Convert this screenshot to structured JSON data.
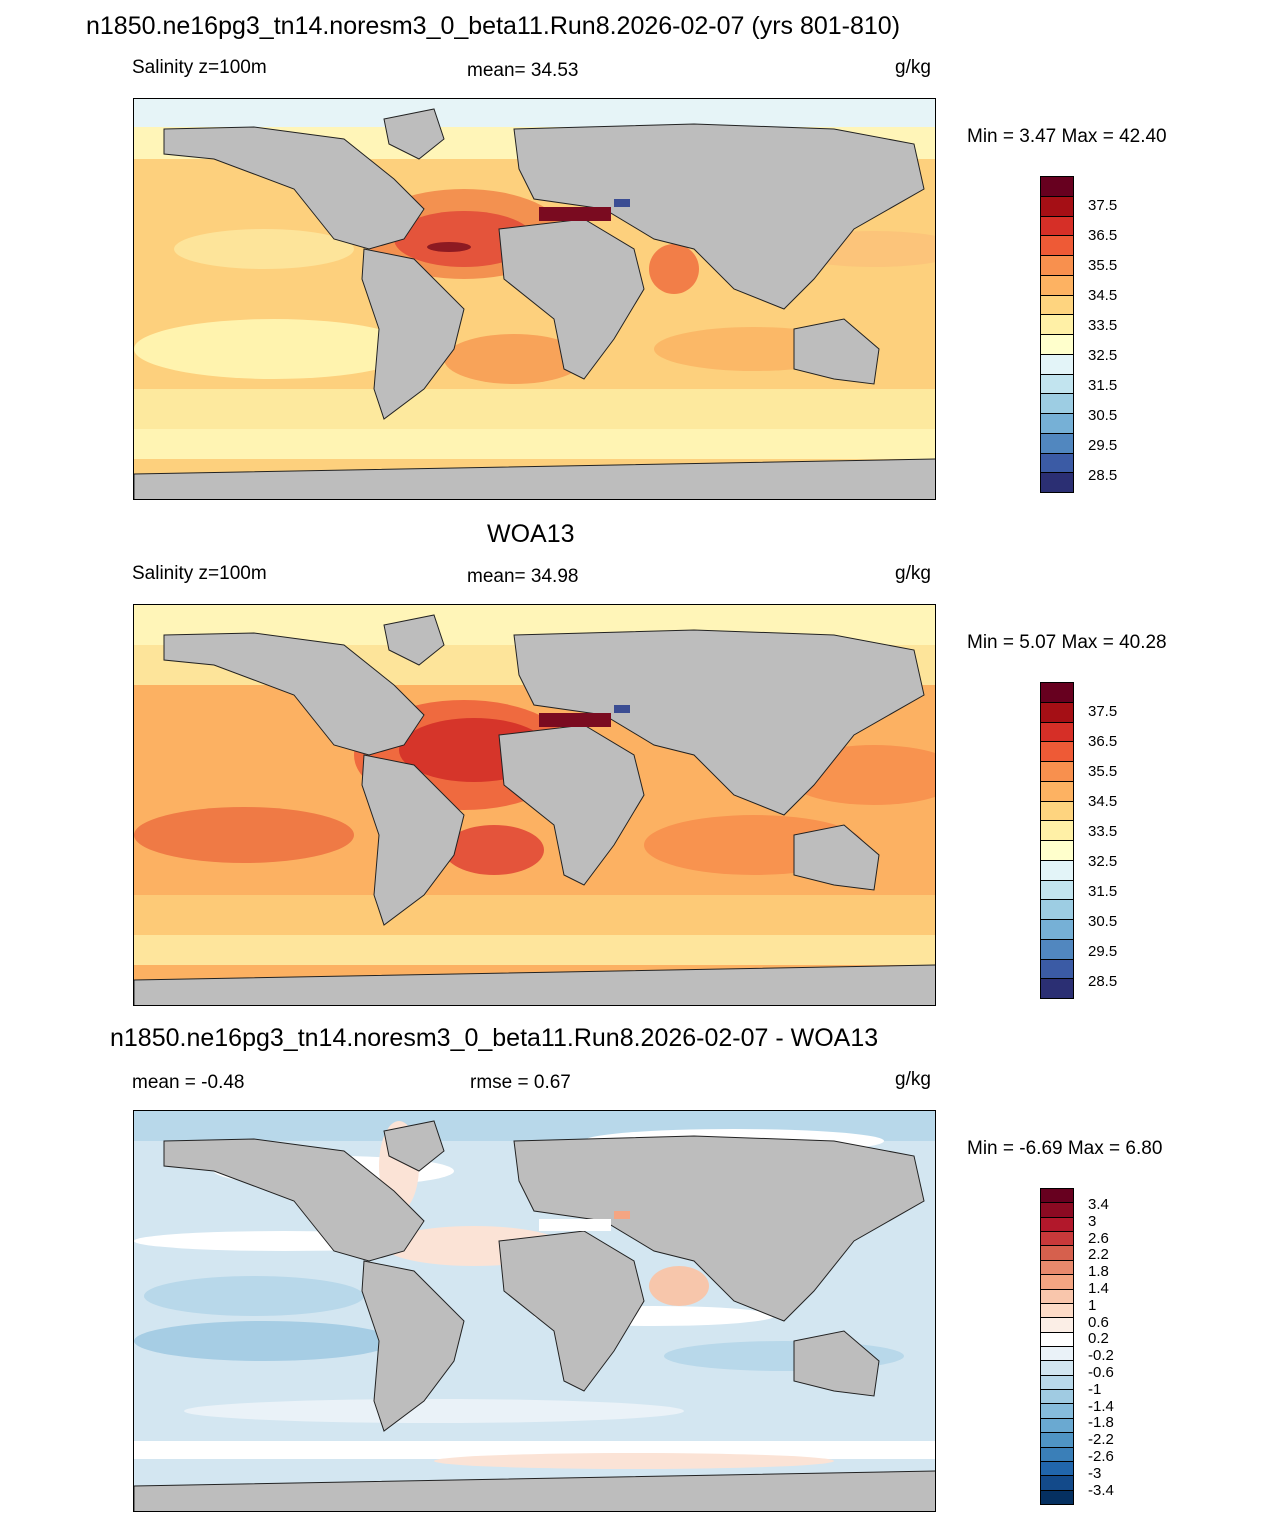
{
  "main_title": "n1850.ne16pg3_tn14.noresm3_0_beta11.Run8.2026-02-07 (yrs 801-810)",
  "panels": [
    {
      "id": "model",
      "title": "",
      "left_label": "Salinity z=100m",
      "center_label": "mean=  34.53",
      "units": "g/kg",
      "minmax": "Min =   3.47 Max =  42.40",
      "colorbar": {
        "colors": [
          "#67001f",
          "#a50f15",
          "#d62f27",
          "#ee5a36",
          "#f8904e",
          "#fdb262",
          "#fed47f",
          "#fff0a6",
          "#ffffcc",
          "#e3f4f8",
          "#c2e4ef",
          "#9dcde3",
          "#76b0d6",
          "#5187bf",
          "#3b5ba5",
          "#2b2f73"
        ],
        "labels": [
          "37.5",
          "36.5",
          "35.5",
          "34.5",
          "33.5",
          "32.5",
          "31.5",
          "30.5",
          "29.5",
          "28.5"
        ]
      }
    },
    {
      "id": "obs",
      "title": "WOA13",
      "left_label": "Salinity z=100m",
      "center_label": "mean=  34.98",
      "units": "g/kg",
      "minmax": "Min =   5.07 Max =  40.28",
      "colorbar": {
        "colors": [
          "#67001f",
          "#a50f15",
          "#d62f27",
          "#ee5a36",
          "#f8904e",
          "#fdb262",
          "#fed47f",
          "#fff0a6",
          "#ffffcc",
          "#e3f4f8",
          "#c2e4ef",
          "#9dcde3",
          "#76b0d6",
          "#5187bf",
          "#3b5ba5",
          "#2b2f73"
        ],
        "labels": [
          "37.5",
          "36.5",
          "35.5",
          "34.5",
          "33.5",
          "32.5",
          "31.5",
          "30.5",
          "29.5",
          "28.5"
        ]
      }
    },
    {
      "id": "diff",
      "title": "n1850.ne16pg3_tn14.noresm3_0_beta11.Run8.2026-02-07 - WOA13",
      "left_label": "mean =  -0.48",
      "center_label": "rmse =   0.67",
      "units": "g/kg",
      "minmax": "Min =  -6.69 Max =   6.80",
      "colorbar": {
        "colors": [
          "#67001f",
          "#8b0a22",
          "#b2182b",
          "#c8393a",
          "#d6604d",
          "#e8896c",
          "#f4a582",
          "#f9c6ac",
          "#fddbc7",
          "#fbeee6",
          "#ffffff",
          "#eaf2f8",
          "#d1e5f0",
          "#b8d8ea",
          "#a0cbe2",
          "#86bcdc",
          "#6aa9d1",
          "#4f94c4",
          "#3a7fb8",
          "#2166ac",
          "#134a8a",
          "#053061"
        ],
        "labels": [
          "3.4",
          "3",
          "2.6",
          "2.2",
          "1.8",
          "1.4",
          "1",
          "0.6",
          "0.2",
          "-0.2",
          "-0.6",
          "-1",
          "-1.4",
          "-1.8",
          "-2.2",
          "-2.6",
          "-3",
          "-3.4"
        ]
      }
    }
  ]
}
